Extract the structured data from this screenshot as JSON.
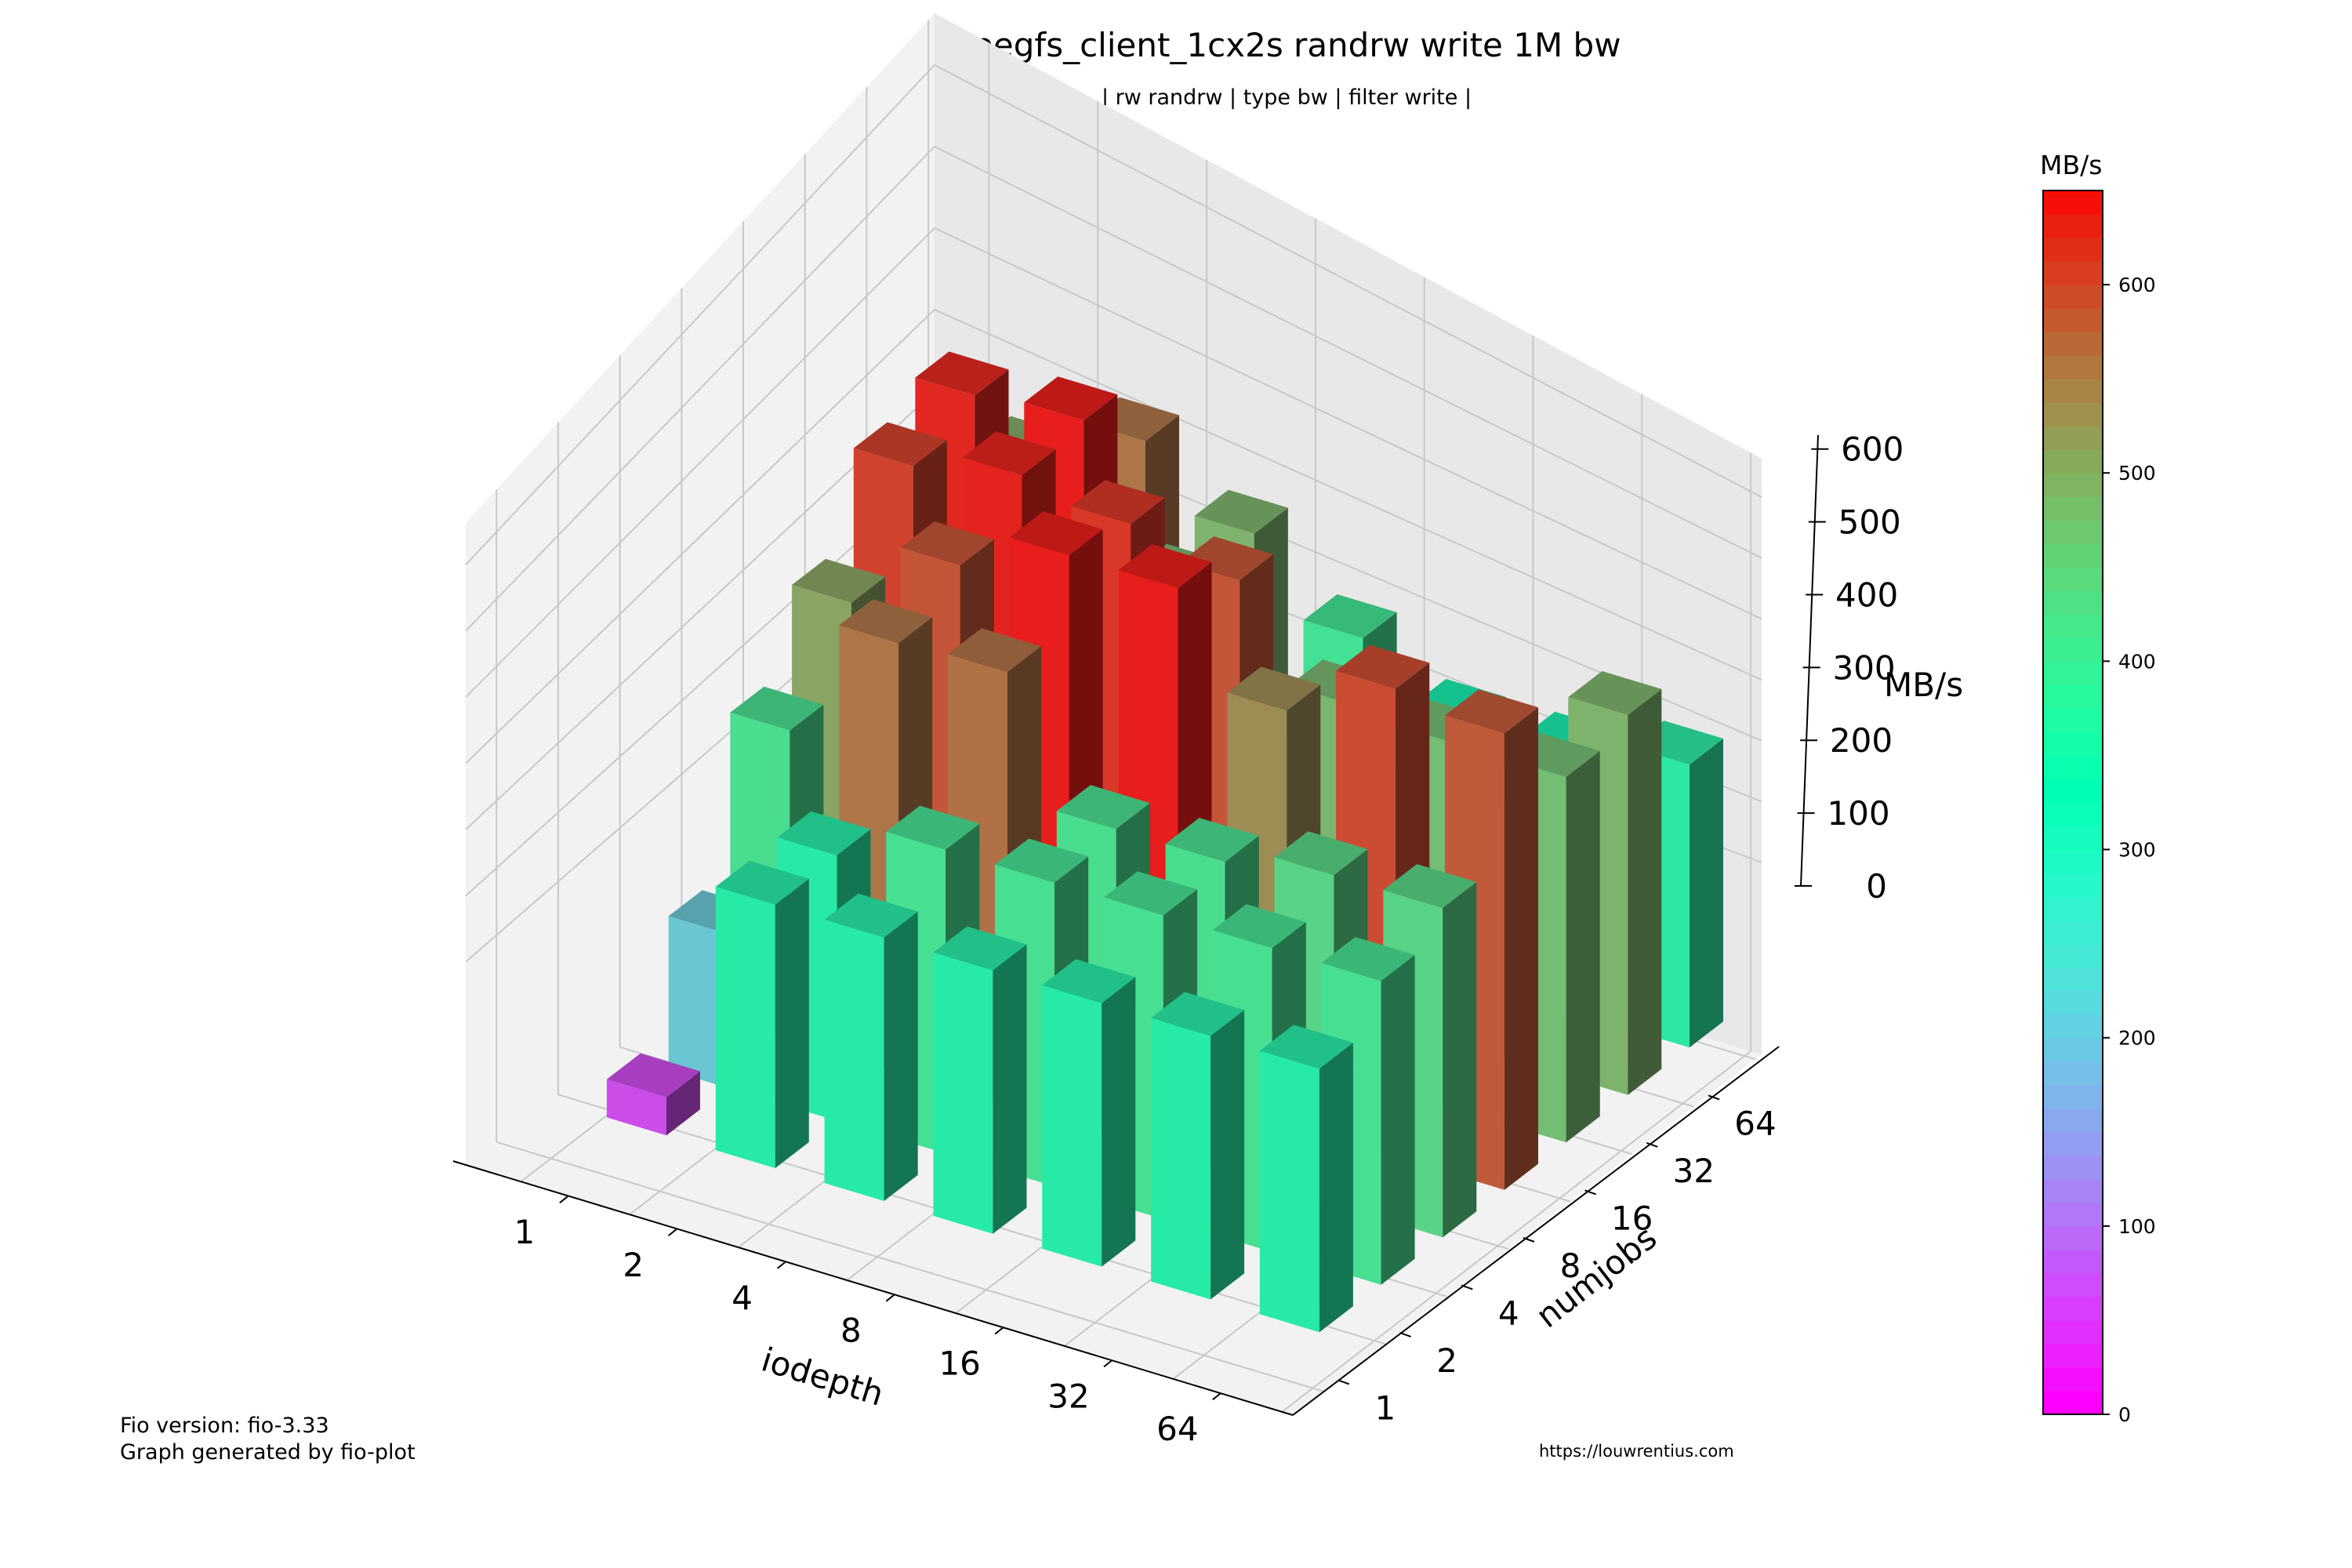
{
  "title": "beegfs_client_1cx2s randrw write 1M bw",
  "subtitle": "| rw randrw | type bw | filter write |",
  "footer": {
    "left_line1": "Fio version: fio-3.33",
    "left_line2": "Graph generated by fio-plot",
    "right": "https://louwrentius.com"
  },
  "colorbar": {
    "label": "MB/s",
    "min": 0,
    "max": 650,
    "ticks": [
      0,
      100,
      200,
      300,
      400,
      500,
      600
    ],
    "colormap": "rainbow"
  },
  "chart_data": {
    "type": "bar3d",
    "title": "beegfs_client_1cx2s randrw write 1M bw",
    "subtitle": "| rw randrw | type bw | filter write |",
    "xlabel": "iodepth",
    "ylabel": "numjobs",
    "zlabel": "MB/s",
    "x_categories": [
      "1",
      "2",
      "4",
      "8",
      "16",
      "32",
      "64"
    ],
    "y_categories": [
      "1",
      "2",
      "4",
      "8",
      "16",
      "32",
      "64"
    ],
    "zlim": [
      0,
      650
    ],
    "z_ticks": [
      0,
      100,
      200,
      300,
      400,
      500,
      600
    ],
    "grid": true,
    "values_by_numjobs": [
      {
        "numjobs": "1",
        "values": [
          50,
          345,
          345,
          345,
          345,
          345,
          345
        ]
      },
      {
        "numjobs": "2",
        "values": [
          200,
          345,
          395,
          395,
          395,
          395,
          395
        ]
      },
      {
        "numjobs": "4",
        "values": [
          400,
          555,
          560,
          400,
          400,
          425,
          425
        ]
      },
      {
        "numjobs": "8",
        "values": [
          500,
          590,
          645,
          645,
          530,
          600,
          585
        ]
      },
      {
        "numjobs": "16",
        "values": [
          610,
          640,
          620,
          590,
          475,
          465,
          465
        ]
      },
      {
        "numjobs": "32",
        "values": [
          635,
          645,
          475,
          325,
          325,
          325,
          480
        ]
      },
      {
        "numjobs": "64",
        "values": [
          490,
          555,
          480,
          390,
          325,
          325,
          355
        ]
      }
    ]
  }
}
